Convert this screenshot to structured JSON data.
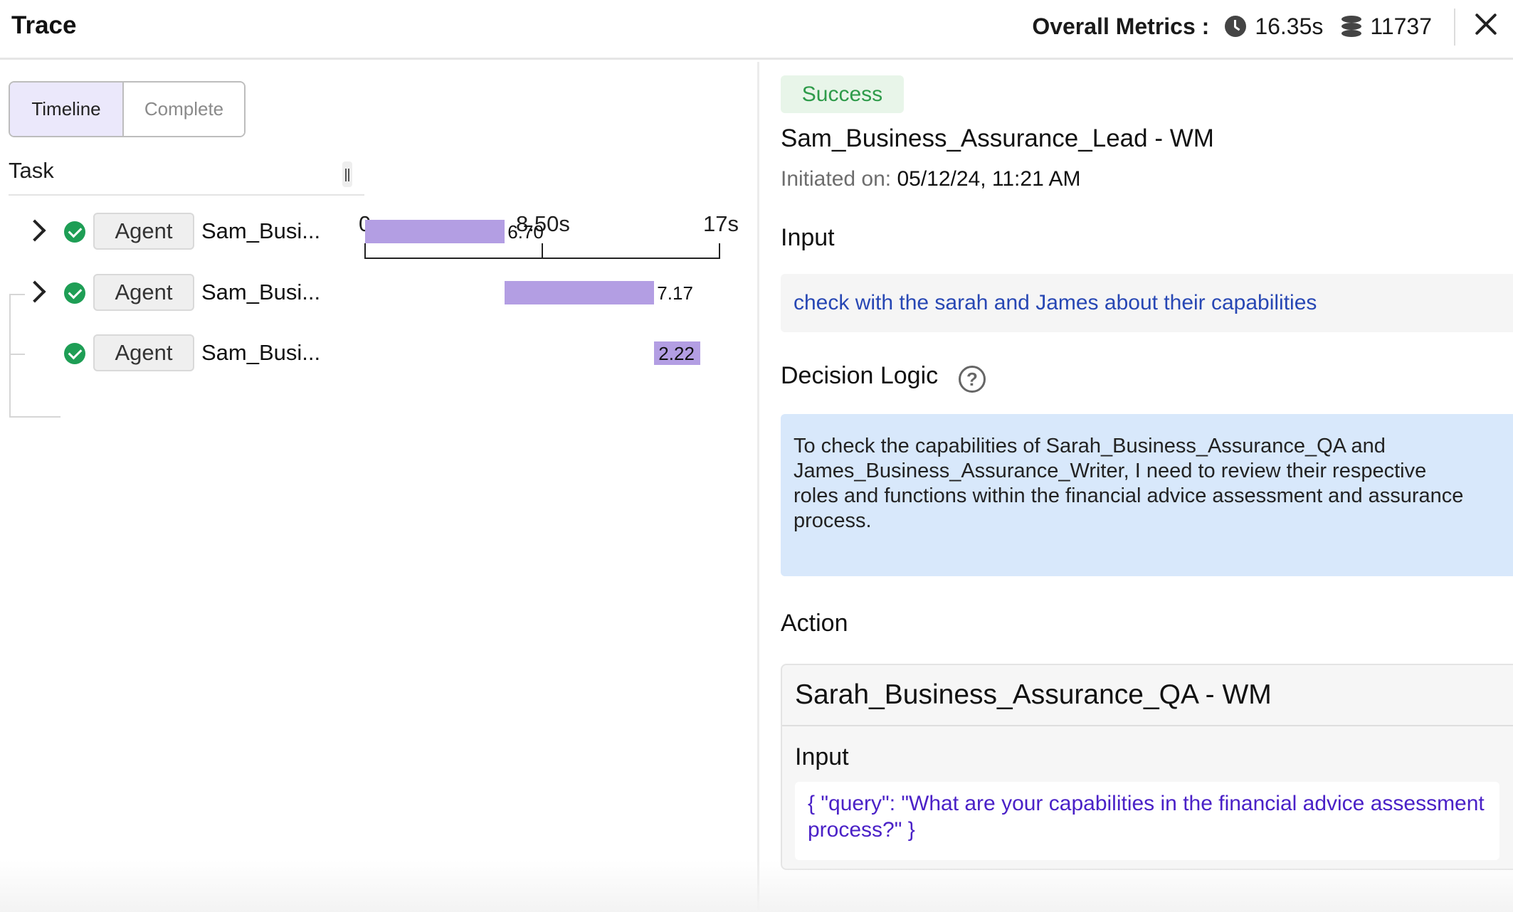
{
  "header": {
    "title": "Trace",
    "metrics_label": "Overall Metrics :",
    "duration": "16.35s",
    "tokens": "11737"
  },
  "view_toggle": {
    "options": [
      "Timeline",
      "Complete"
    ],
    "selected": "Timeline"
  },
  "timeline": {
    "column_header": "Task",
    "axis": {
      "ticks": [
        "0",
        "8.50s",
        "17s"
      ],
      "min": 0,
      "max": 17
    },
    "rows": [
      {
        "type": "Agent",
        "name": "Sam_Busi...",
        "expandable": true,
        "status": "success",
        "start": 0,
        "duration": 6.7,
        "duration_label": "6.70"
      },
      {
        "type": "Agent",
        "name": "Sam_Busi...",
        "expandable": true,
        "status": "success",
        "start": 6.7,
        "duration": 7.17,
        "duration_label": "7.17"
      },
      {
        "type": "Agent",
        "name": "Sam_Busi...",
        "expandable": false,
        "status": "success",
        "start": 13.87,
        "duration": 2.22,
        "duration_label": "2.22"
      }
    ]
  },
  "detail": {
    "status": "Success",
    "title": "Sam_Business_Assurance_Lead - WM",
    "initiated_label": "Initiated on:",
    "initiated_value": "05/12/24, 11:21 AM",
    "input_label": "Input",
    "input_text": "check with the sarah and James about their capabilities",
    "decision_label": "Decision Logic",
    "decision_text": "To check the capabilities of Sarah_Business_Assurance_QA and James_Business_Assurance_Writer, I need to review their respective roles and functions within the financial advice assessment and assurance process.",
    "action_label": "Action",
    "action": {
      "title": "Sarah_Business_Assurance_QA - WM",
      "input_label": "Input",
      "input_code": "{ \"query\": \"What are your capabilities in the financial advice assessment process?\" }"
    }
  },
  "colors": {
    "bar": "#b39ee3",
    "success": "#1e9e55",
    "decision_bg": "#d8e8fb",
    "input_text": "#2747b4",
    "code_text": "#4a21c7"
  }
}
